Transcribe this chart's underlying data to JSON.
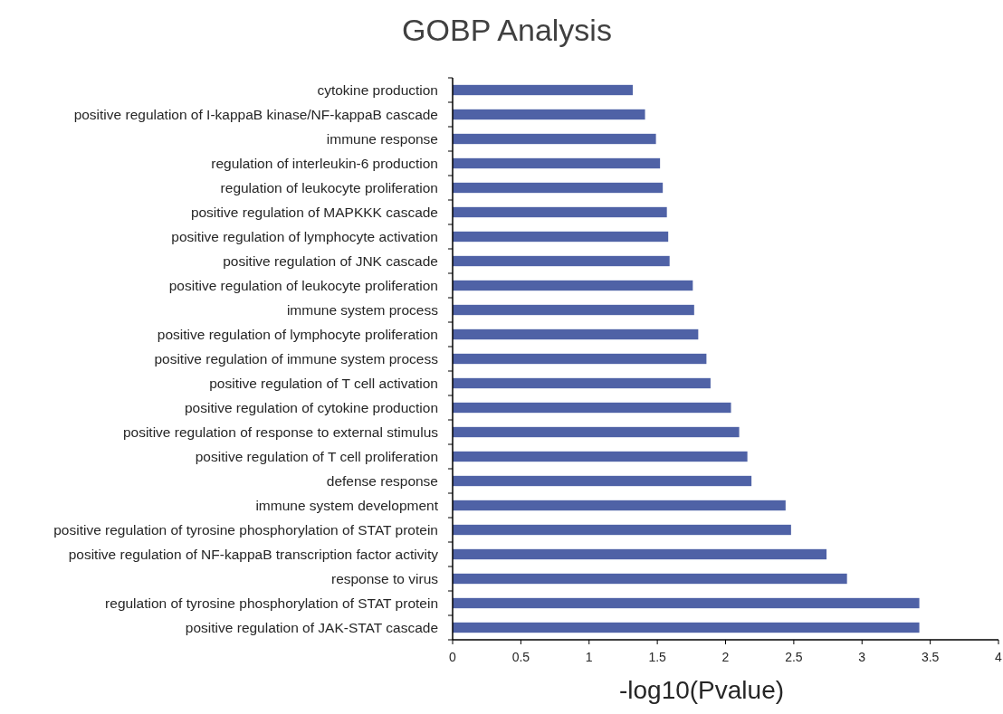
{
  "chart_data": {
    "type": "bar",
    "orientation": "horizontal",
    "title": "GOBP Analysis",
    "xlabel": "-log10(Pvalue)",
    "color": "#4f62a6",
    "categories": [
      "cytokine production",
      "positive regulation of I-kappaB kinase/NF-kappaB cascade",
      "immune response",
      "regulation of interleukin-6 production",
      "regulation of leukocyte proliferation",
      "positive regulation of MAPKKK cascade",
      "positive regulation of lymphocyte activation",
      "positive regulation of JNK cascade",
      "positive regulation of leukocyte proliferation",
      "immune system process",
      "positive regulation of lymphocyte proliferation",
      "positive regulation of immune system process",
      "positive regulation of T cell activation",
      "positive regulation of cytokine production",
      "positive regulation of response to external stimulus",
      "positive regulation of T cell proliferation",
      "defense response",
      "immune system development",
      "positive regulation of tyrosine phosphorylation of STAT protein",
      "positive regulation of NF-kappaB transcription factor activity",
      "response to virus",
      "regulation of tyrosine phosphorylation of STAT protein",
      "positive regulation of JAK-STAT cascade"
    ],
    "values": [
      1.32,
      1.41,
      1.49,
      1.52,
      1.54,
      1.57,
      1.58,
      1.59,
      1.76,
      1.77,
      1.8,
      1.86,
      1.89,
      2.04,
      2.1,
      2.16,
      2.19,
      2.44,
      2.48,
      2.74,
      2.89,
      3.42,
      3.42
    ],
    "xlim": [
      0,
      4
    ],
    "xticks": [
      0,
      0.5,
      1,
      1.5,
      2,
      2.5,
      3,
      3.5,
      4
    ],
    "grid": false
  }
}
